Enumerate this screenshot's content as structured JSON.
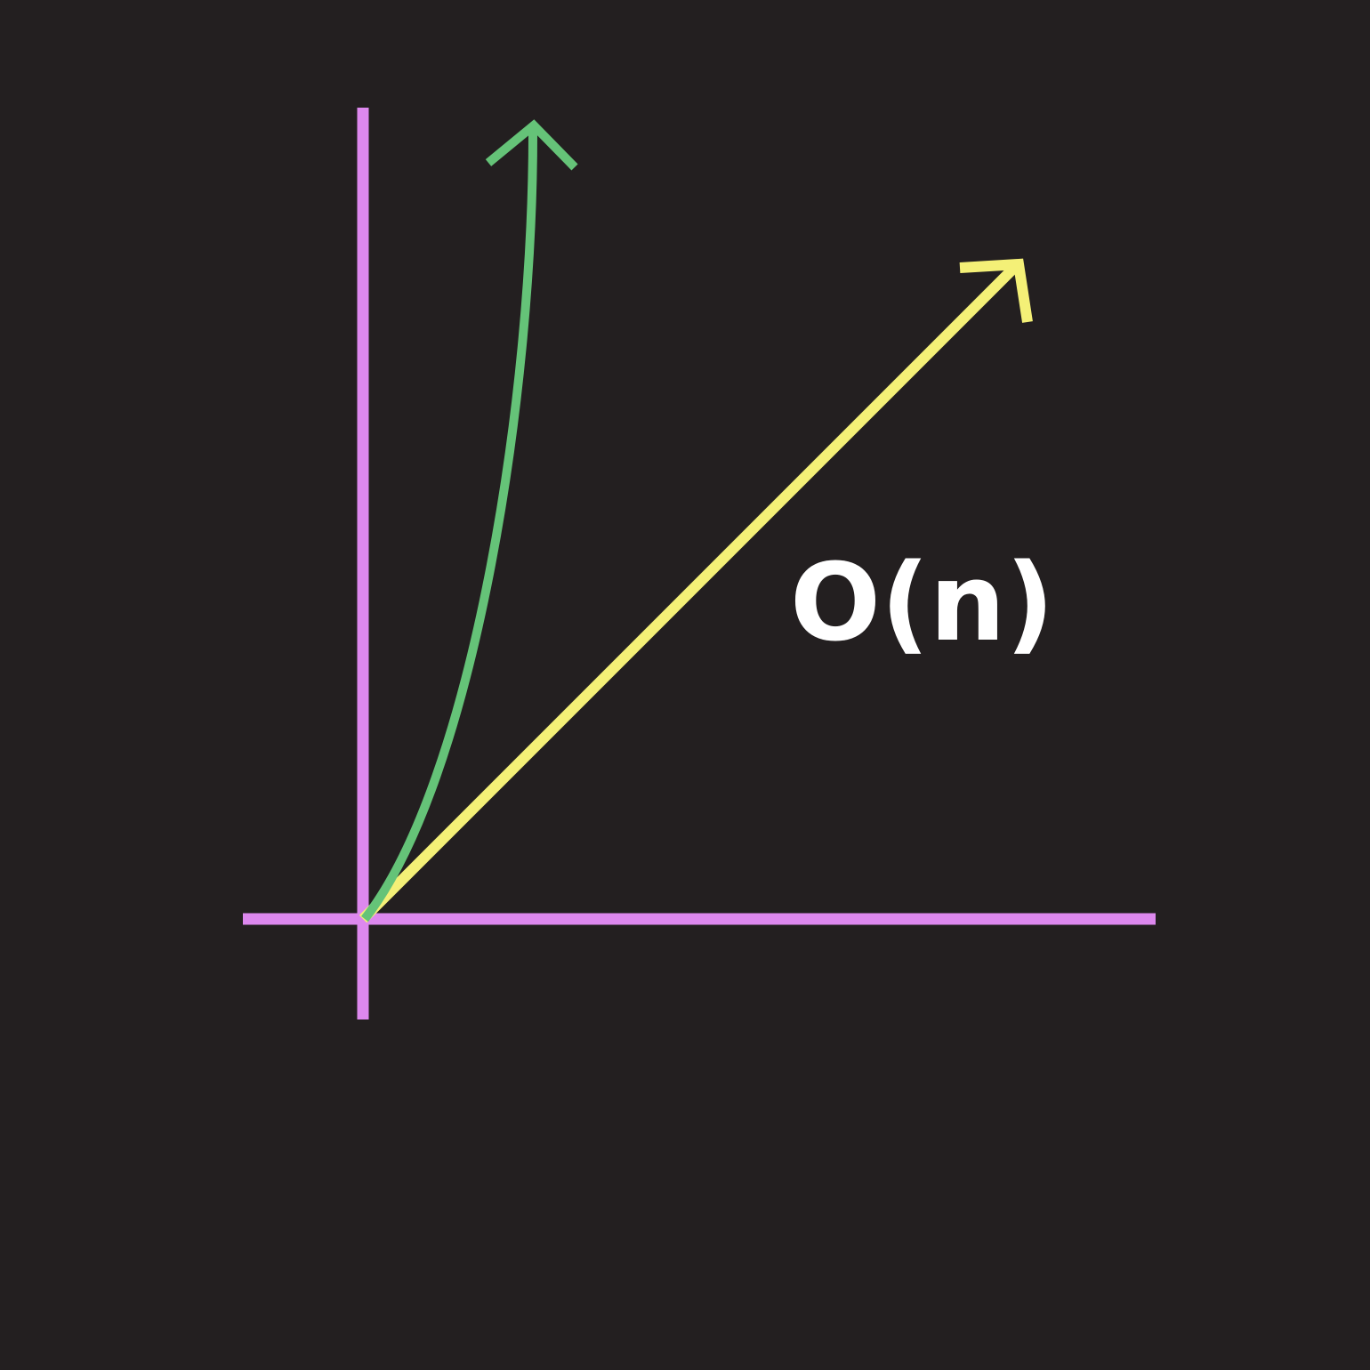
{
  "colors": {
    "background": "#231f20",
    "axes": "#dd88ee",
    "exponential_curve": "#65c378",
    "linear_line": "#f4f077",
    "label": "#ffffff"
  },
  "labels": {
    "linear": "O(n)"
  }
}
